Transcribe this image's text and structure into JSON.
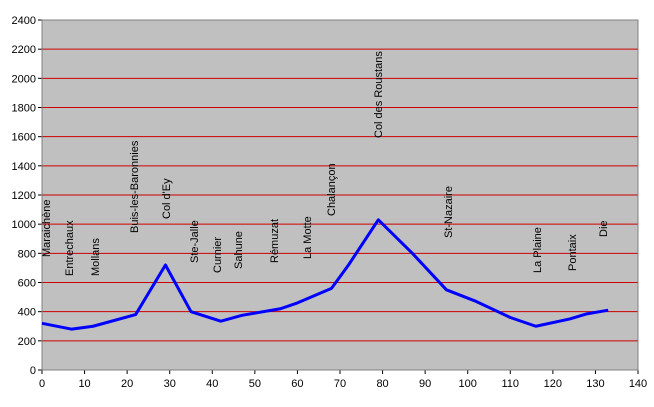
{
  "chart_data": {
    "type": "line",
    "x": [
      0,
      7,
      12,
      22,
      29,
      35,
      42,
      47,
      56,
      60,
      68,
      72,
      79,
      87,
      95,
      102,
      110,
      116,
      124,
      128,
      133
    ],
    "series": [
      {
        "color": "#0000ff",
        "values": [
          320,
          280,
          300,
          380,
          720,
          400,
          335,
          375,
          420,
          460,
          560,
          720,
          1030,
          800,
          550,
          470,
          360,
          300,
          350,
          385,
          410
        ]
      }
    ],
    "annotations": [
      "Maraichène",
      "Entrechaux",
      "Mollans",
      "Buis-les-Baronnies",
      "Col d'Ey",
      "Ste-Jalle",
      "Curnier",
      "Sahune",
      "Rémuzat",
      "La Motte",
      "Chalançon",
      "Col des Roustans",
      "St-Nazaire",
      "La Plaine",
      "Pontaix",
      "Die"
    ],
    "xlim": [
      0,
      140
    ],
    "xticks": [
      0,
      10,
      20,
      30,
      40,
      50,
      60,
      70,
      80,
      90,
      100,
      110,
      120,
      130,
      140
    ],
    "ylim": [
      0,
      2400
    ],
    "yticks": [
      0,
      200,
      400,
      600,
      800,
      1000,
      1200,
      1400,
      1600,
      1800,
      2000,
      2200,
      2400
    ],
    "grid": true,
    "grid_color": "#cc0000",
    "background": "#c0c0c0"
  }
}
